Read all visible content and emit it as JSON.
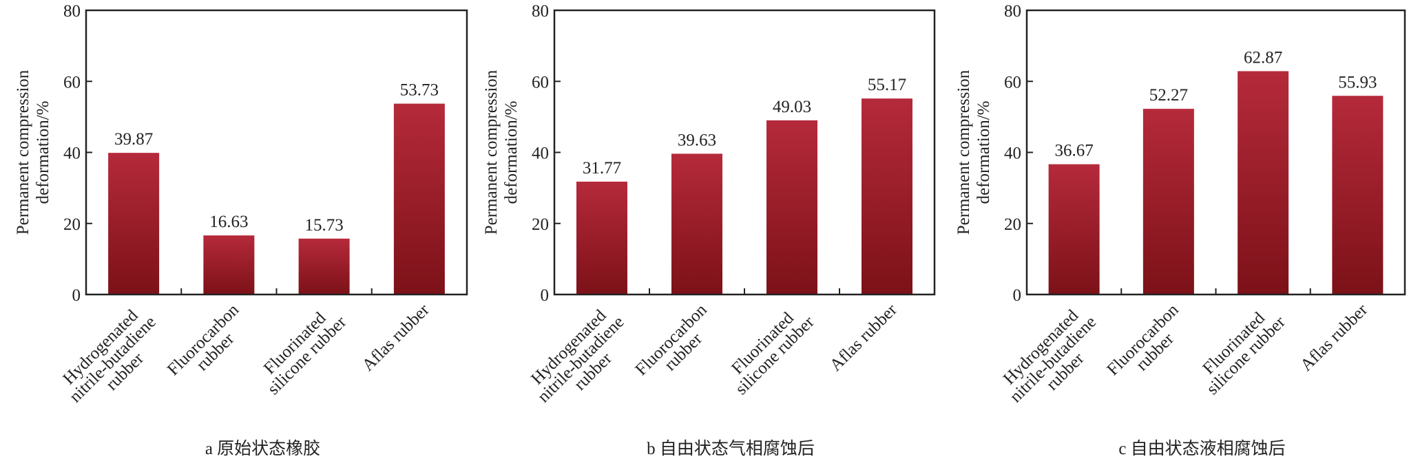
{
  "chart_data": [
    {
      "type": "bar",
      "caption": "a  原始状态橡胶",
      "ylabel_lines": [
        "Permanent compression",
        "deformation/%"
      ],
      "categories": [
        [
          "Hydrogenated",
          "nitrile-butadiene",
          "rubber"
        ],
        [
          "Fluorocarbon",
          "rubber"
        ],
        [
          "Fluorinated",
          "silicone rubber"
        ],
        [
          "Aflas rubber"
        ]
      ],
      "values": [
        39.87,
        16.63,
        15.73,
        53.73
      ],
      "data_labels": [
        "39.87",
        "16.63",
        "15.73",
        "53.73"
      ],
      "ylim": [
        0,
        80
      ],
      "yticks": [
        0,
        20,
        40,
        60,
        80
      ],
      "grid": false
    },
    {
      "type": "bar",
      "caption": "b  自由状态气相腐蚀后",
      "ylabel_lines": [
        "Permanent compression",
        "deformation/%"
      ],
      "categories": [
        [
          "Hydrogenated",
          "nitrile-butadiene",
          "rubber"
        ],
        [
          "Fluorocarbon",
          "rubber"
        ],
        [
          "Fluorinated",
          "silicone rubber"
        ],
        [
          "Aflas rubber"
        ]
      ],
      "values": [
        31.77,
        39.63,
        49.03,
        55.17
      ],
      "data_labels": [
        "31.77",
        "39.63",
        "49.03",
        "55.17"
      ],
      "ylim": [
        0,
        80
      ],
      "yticks": [
        0,
        20,
        40,
        60,
        80
      ],
      "grid": false
    },
    {
      "type": "bar",
      "caption": "c  自由状态液相腐蚀后",
      "ylabel_lines": [
        "Permanent compression",
        "deformation/%"
      ],
      "categories": [
        [
          "Hydrogenated",
          "nitrile-butadiene",
          "rubber"
        ],
        [
          "Fluorocarbon",
          "rubber"
        ],
        [
          "Fluorinated",
          "silicone rubber"
        ],
        [
          "Aflas rubber"
        ]
      ],
      "values": [
        36.67,
        52.27,
        62.87,
        55.93
      ],
      "data_labels": [
        "36.67",
        "52.27",
        "62.87",
        "55.93"
      ],
      "ylim": [
        0,
        80
      ],
      "yticks": [
        0,
        20,
        40,
        60,
        80
      ],
      "grid": false
    }
  ],
  "colors": {
    "bar_top": "#b52a3b",
    "bar_bottom": "#7c1118",
    "axis": "#222222"
  }
}
